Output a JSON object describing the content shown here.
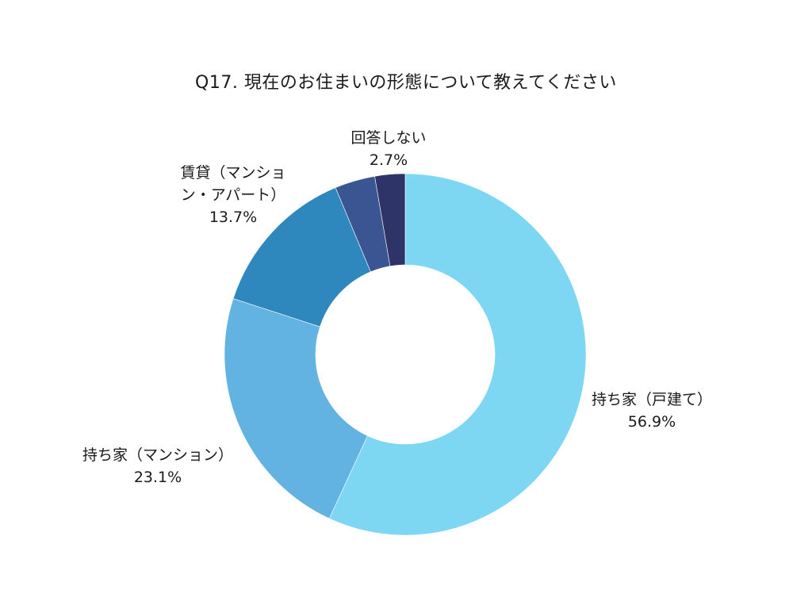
{
  "chart_data": {
    "type": "pie",
    "subtype": "donut",
    "title": "Q17. 現在のお住まいの形態について教えてください",
    "start_angle": "12 o'clock, clockwise",
    "slices": [
      {
        "label": "持ち家（戸建て）",
        "value": 56.9,
        "display": "56.9%",
        "color": "#7dd6f2"
      },
      {
        "label": "持ち家（マンション）",
        "value": 23.1,
        "display": "23.1%",
        "color": "#62b2e2"
      },
      {
        "label": "賃貸（マンション・アパート）",
        "label_lines": [
          "賃貸（マンショ",
          "ン・アパート）"
        ],
        "value": 13.7,
        "display": "13.7%",
        "color": "#2e88bd"
      },
      {
        "label": "",
        "value": 3.6,
        "display": "",
        "color": "#3b5592"
      },
      {
        "label": "回答しない",
        "value": 2.7,
        "display": "2.7%",
        "color": "#2f3468"
      }
    ],
    "legend": "none (direct labels)"
  }
}
